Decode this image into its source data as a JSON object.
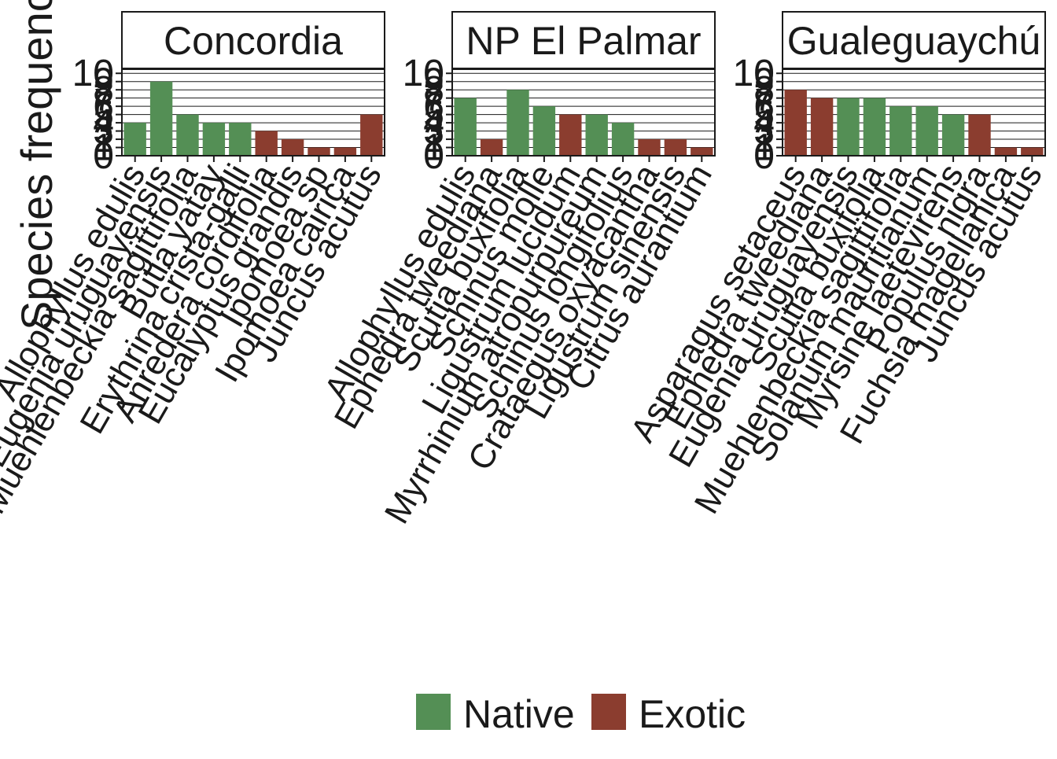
{
  "chart_data": {
    "type": "bar",
    "ylabel": "Species frequency",
    "ylim": [
      0,
      10
    ],
    "yticks": [
      "0",
      "1",
      "2",
      "3",
      "4",
      "5",
      "6",
      "7",
      "8",
      "9",
      "10"
    ],
    "grid": true,
    "legend_position": "bottom",
    "legend": [
      {
        "name": "Native",
        "color": "#548f55"
      },
      {
        "name": "Exotic",
        "color": "#8b3d2f"
      }
    ],
    "panels": [
      {
        "title": "Concordia",
        "categories": [
          "Allophyllus edulis",
          "Eugenia uruguayensis",
          "Muehlenbeckia sagittifolia",
          "Butia yatay",
          "Erythrina crista-galli",
          "Anredera cordifolia",
          "Eucalyptus grandis",
          "Ipomoea sp",
          "Ipomoea cairica",
          "Juncus acutus"
        ],
        "values": [
          4,
          9,
          5,
          4,
          4,
          3,
          2,
          1,
          1,
          5
        ],
        "status": [
          "Native",
          "Native",
          "Native",
          "Native",
          "Native",
          "Exotic",
          "Exotic",
          "Exotic",
          "Exotic",
          "Exotic"
        ]
      },
      {
        "title": "NP El Palmar",
        "categories": [
          "Allophyllus edulis",
          "Ephedra tweediana",
          "Scutia buxifolia",
          "Schinus molle",
          "Ligustrum lucidum",
          "Myrrhinium atropurpureum",
          "Schinus longifolius",
          "Crataegus oxyacantha",
          "Ligustrum sinensis",
          "Citrus aurantium"
        ],
        "values": [
          7,
          2,
          8,
          6,
          5,
          5,
          4,
          2,
          2,
          1
        ],
        "status": [
          "Native",
          "Exotic",
          "Native",
          "Native",
          "Exotic",
          "Native",
          "Native",
          "Exotic",
          "Exotic",
          "Exotic"
        ]
      },
      {
        "title": "Gualeguaychú",
        "categories": [
          "Asparagus setaceus",
          "Ephedra tweediana",
          "Eugenia uruguayensis",
          "Scutia buxifolia",
          "Muehlenbeckia sagittifolia",
          "Solanum mauritianum",
          "Myrsine laetevirens",
          "Populus nigra",
          "Fuchsia magellanica",
          "Juncus acutus"
        ],
        "values": [
          8,
          7,
          7,
          7,
          6,
          6,
          5,
          5,
          1,
          1
        ],
        "status": [
          "Exotic",
          "Exotic",
          "Native",
          "Native",
          "Native",
          "Native",
          "Native",
          "Exotic",
          "Exotic",
          "Exotic"
        ]
      }
    ]
  }
}
